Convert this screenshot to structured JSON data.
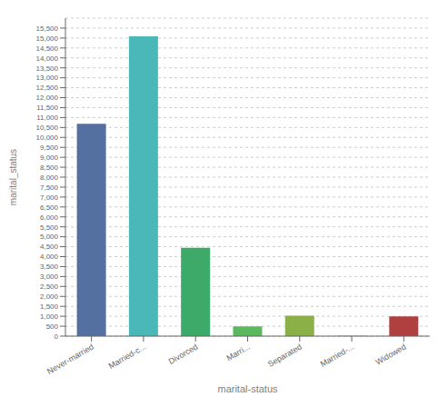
{
  "chart_data": {
    "type": "bar",
    "categories": [
      "Never-married",
      "Married-c...",
      "Divorced",
      "Marri...",
      "Separated",
      "Married-...",
      "Widowed"
    ],
    "values": [
      10683,
      15090,
      4443,
      487,
      1025,
      23,
      993
    ],
    "colors": [
      "#5470a0",
      "#4ab8b8",
      "#3daa6a",
      "#5cb85c",
      "#8cb048",
      "#b0b050",
      "#b04040"
    ],
    "xlabel": "marital-status",
    "ylabel": "marital_status",
    "ylim": [
      0,
      16000
    ],
    "yticks": [
      0,
      500,
      {
        "value": 1000,
        "label": "1,000"
      },
      {
        "value": 1500,
        "label": "1,500"
      },
      {
        "value": 2000,
        "label": "2,000"
      },
      {
        "value": 2500,
        "label": "2,500"
      },
      {
        "value": 3000,
        "label": "3,000"
      },
      {
        "value": 3500,
        "label": "3,500"
      },
      {
        "value": 4000,
        "label": "4,000"
      },
      {
        "value": 4500,
        "label": "4,500"
      },
      {
        "value": 5000,
        "label": "5,000"
      },
      {
        "value": 5500,
        "label": "5,500"
      },
      {
        "value": 6000,
        "label": "6,000"
      },
      {
        "value": 6500,
        "label": "6,500"
      },
      {
        "value": 7000,
        "label": "7,000"
      },
      {
        "value": 7500,
        "label": "7,500"
      },
      {
        "value": 8000,
        "label": "8,000"
      },
      {
        "value": 8500,
        "label": "8,500"
      },
      {
        "value": 9000,
        "label": "9,000"
      },
      {
        "value": 9500,
        "label": "9,500"
      },
      {
        "value": 10000,
        "label": "10,000"
      },
      {
        "value": 10500,
        "label": "10,500"
      },
      {
        "value": 11000,
        "label": "11,000"
      },
      {
        "value": 11500,
        "label": "11,500"
      },
      {
        "value": 12000,
        "label": "12,000"
      },
      {
        "value": 12500,
        "label": "12,500"
      },
      {
        "value": 13000,
        "label": "13,000"
      },
      {
        "value": 13500,
        "label": "13,500"
      },
      {
        "value": 14000,
        "label": "14,000"
      },
      {
        "value": 14500,
        "label": "14,500"
      },
      {
        "value": 15000,
        "label": "15,000"
      },
      {
        "value": 15500,
        "label": "15,500"
      }
    ],
    "grid": true
  }
}
